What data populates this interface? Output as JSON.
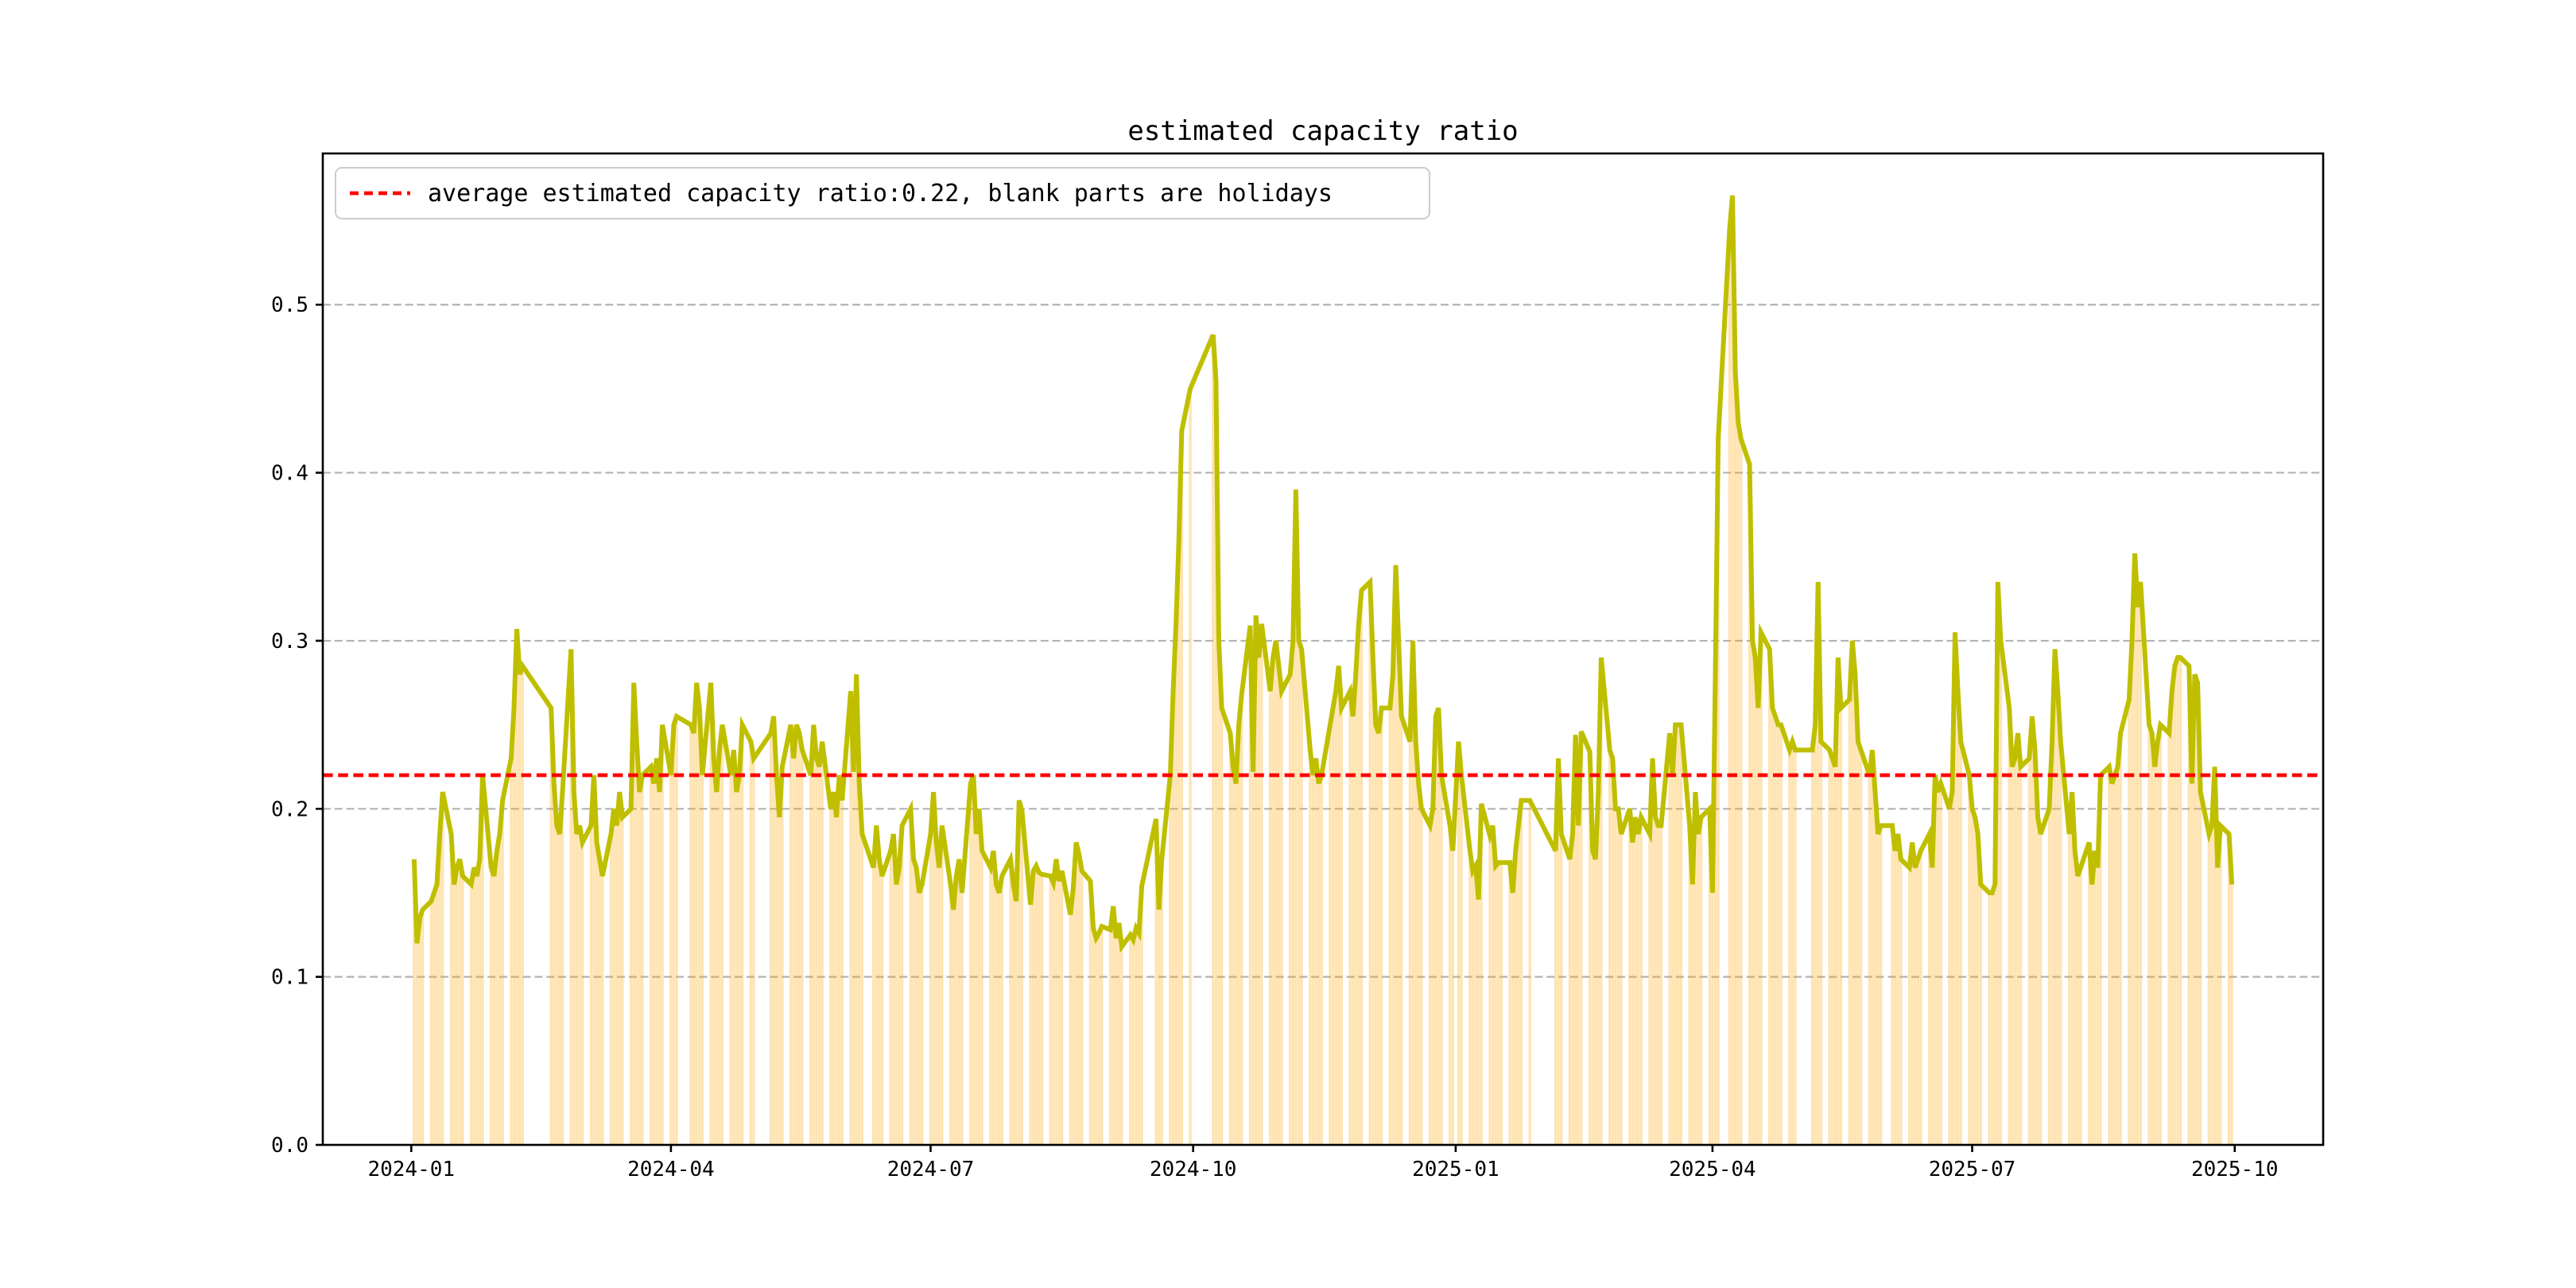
{
  "title": "estimated capacity ratio",
  "legend": {
    "label": "average estimated capacity ratio:0.22, blank parts are holidays",
    "sample_line_color": "#ff0000",
    "sample_line_style": "dashed"
  },
  "chart_data": {
    "type": "bar+line",
    "title": "estimated capacity ratio",
    "xlabel": "",
    "ylabel": "",
    "grid": true,
    "legend_position": "upper left",
    "xlim": [
      "2023-12-01",
      "2025-11-01"
    ],
    "ylim": [
      0,
      0.59
    ],
    "y_ticks": [
      0,
      0.1,
      0.2,
      0.3,
      0.4,
      0.5
    ],
    "y_tick_labels": [
      "0.0",
      "0.1",
      "0.2",
      "0.3",
      "0.4",
      "0.5"
    ],
    "x_tick_labels": [
      "2024-01",
      "2024-04",
      "2024-07",
      "2024-10",
      "2025-01",
      "2025-04",
      "2025-07",
      "2025-10"
    ],
    "average_line": {
      "value": 0.22,
      "color": "#ff0000",
      "style": "dashed"
    },
    "colors": {
      "line": "#bfbf00",
      "bar": "#ffa500",
      "bar_opacity": 0.3,
      "grid": "#b3b3b3",
      "spine": "#000000"
    },
    "series": {
      "name": "estimated capacity ratio",
      "frequency": "business-daily, blanks on holidays",
      "start_date": "2024-01-01",
      "end_date": "2025-09-30",
      "monthly_values": [
        {
          "month": "2024-01",
          "values": [
            0.17,
            0.12,
            0.135,
            0.14,
            0.145,
            0.15,
            0.155,
            0.185,
            0.21,
            0.185,
            0.155,
            0.165,
            0.17,
            0.16,
            0.155,
            0.165,
            0.16,
            0.17,
            0.22,
            0.165,
            0.16,
            0.175
          ]
        },
        {
          "month": "2024-02",
          "values": [
            0.185,
            0.205,
            0.23,
            0.26,
            0.307,
            0.28,
            0.285,
            0.26,
            0.215,
            0.19,
            0.185,
            0.21,
            0.295,
            0.21,
            0.185,
            0.19
          ]
        },
        {
          "month": "2024-03",
          "values": [
            0.18,
            0.19,
            0.22,
            0.18,
            0.17,
            0.16,
            0.185,
            0.2,
            0.19,
            0.21,
            0.195,
            0.2,
            0.275,
            0.24,
            0.21,
            0.22,
            0.225,
            0.215,
            0.23,
            0.21,
            0.25
          ]
        },
        {
          "month": "2024-04",
          "values": [
            0.22,
            0.25,
            0.255,
            0.25,
            0.245,
            0.275,
            0.26,
            0.22,
            0.275,
            0.23,
            0.21,
            0.235,
            0.25,
            0.22,
            0.235,
            0.21,
            0.22,
            0.25,
            0.24,
            0.23
          ]
        },
        {
          "month": "2024-05",
          "values": [
            0.245,
            0.255,
            0.22,
            0.195,
            0.225,
            0.25,
            0.23,
            0.25,
            0.245,
            0.235,
            0.22,
            0.25,
            0.23,
            0.225,
            0.24,
            0.2,
            0.21,
            0.195,
            0.22,
            0.205
          ]
        },
        {
          "month": "2024-06",
          "values": [
            0.27,
            0.222,
            0.28,
            0.215,
            0.185,
            0.165,
            0.19,
            0.17,
            0.16,
            0.175,
            0.185,
            0.155,
            0.165,
            0.19,
            0.2,
            0.17,
            0.165,
            0.15,
            0.155
          ]
        },
        {
          "month": "2024-07",
          "values": [
            0.185,
            0.21,
            0.18,
            0.165,
            0.19,
            0.155,
            0.14,
            0.16,
            0.17,
            0.15,
            0.215,
            0.22,
            0.185,
            0.2,
            0.175,
            0.165,
            0.175,
            0.155,
            0.15,
            0.16,
            0.17,
            0.155,
            0.145
          ]
        },
        {
          "month": "2024-08",
          "values": [
            0.205,
            0.199,
            0.143,
            0.163,
            0.166,
            0.162,
            0.161,
            0.16,
            0.156,
            0.17,
            0.157,
            0.163,
            0.137,
            0.153,
            0.18,
            0.173,
            0.163,
            0.157,
            0.129,
            0.123,
            0.126,
            0.13
          ]
        },
        {
          "month": "2024-09",
          "values": [
            0.128,
            0.142,
            0.123,
            0.132,
            0.118,
            0.125,
            0.122,
            0.129,
            0.126,
            0.154,
            0.194,
            0.14,
            0.17,
            0.22,
            0.27,
            0.31,
            0.36,
            0.425,
            0.45
          ]
        },
        {
          "month": "2024-10",
          "values": [
            0.482,
            0.455,
            0.3,
            0.26,
            0.245,
            0.225,
            0.215,
            0.25,
            0.268,
            0.309,
            0.222,
            0.315,
            0.29,
            0.31,
            0.27,
            0.29,
            0.3,
            0.285
          ]
        },
        {
          "month": "2024-11",
          "values": [
            0.27,
            0.28,
            0.3,
            0.39,
            0.3,
            0.295,
            0.235,
            0.22,
            0.23,
            0.215,
            0.22,
            0.25,
            0.26,
            0.27,
            0.285,
            0.26,
            0.27,
            0.255,
            0.28,
            0.31,
            0.33
          ]
        },
        {
          "month": "2024-12",
          "values": [
            0.335,
            0.29,
            0.25,
            0.245,
            0.26,
            0.26,
            0.28,
            0.345,
            0.3,
            0.255,
            0.24,
            0.3,
            0.24,
            0.215,
            0.2,
            0.19,
            0.2,
            0.255,
            0.26,
            0.22,
            0.19,
            0.175
          ]
        },
        {
          "month": "2025-01",
          "values": [
            0.24,
            0.22,
            0.175,
            0.163,
            0.166,
            0.146,
            0.203,
            0.184,
            0.19,
            0.166,
            0.168,
            0.168,
            0.168,
            0.15,
            0.175,
            0.19,
            0.205,
            0.205
          ]
        },
        {
          "month": "2025-02",
          "values": [
            0.175,
            0.23,
            0.185,
            0.17,
            0.185,
            0.244,
            0.19,
            0.246,
            0.234,
            0.175,
            0.17,
            0.21,
            0.29,
            0.235,
            0.23,
            0.2,
            0.2,
            0.185
          ]
        },
        {
          "month": "2025-03",
          "values": [
            0.2,
            0.18,
            0.195,
            0.185,
            0.195,
            0.185,
            0.23,
            0.195,
            0.19,
            0.19,
            0.245,
            0.22,
            0.25,
            0.25,
            0.25,
            0.19,
            0.155,
            0.21,
            0.185,
            0.195,
            0.2
          ]
        },
        {
          "month": "2025-04",
          "values": [
            0.15,
            0.28,
            0.42,
            0.545,
            0.565,
            0.46,
            0.43,
            0.42,
            0.405,
            0.3,
            0.29,
            0.26,
            0.305,
            0.295,
            0.26,
            0.255,
            0.25,
            0.25,
            0.235,
            0.24,
            0.235
          ]
        },
        {
          "month": "2025-05",
          "values": [
            0.235,
            0.25,
            0.335,
            0.24,
            0.235,
            0.23,
            0.225,
            0.29,
            0.26,
            0.265,
            0.3,
            0.28,
            0.24,
            0.235,
            0.22,
            0.235,
            0.21,
            0.185,
            0.19
          ]
        },
        {
          "month": "2025-06",
          "values": [
            0.19,
            0.175,
            0.185,
            0.17,
            0.165,
            0.18,
            0.165,
            0.17,
            0.175,
            0.185,
            0.165,
            0.22,
            0.21,
            0.215,
            0.2,
            0.21,
            0.305,
            0.27,
            0.24,
            0.22
          ]
        },
        {
          "month": "2025-07",
          "values": [
            0.2,
            0.195,
            0.185,
            0.155,
            0.15,
            0.15,
            0.155,
            0.335,
            0.3,
            0.26,
            0.225,
            0.23,
            0.245,
            0.225,
            0.23,
            0.255,
            0.235,
            0.195,
            0.185,
            0.2,
            0.24,
            0.295,
            0.27
          ]
        },
        {
          "month": "2025-08",
          "values": [
            0.24,
            0.185,
            0.21,
            0.175,
            0.16,
            0.165,
            0.18,
            0.155,
            0.175,
            0.165,
            0.22,
            0.225,
            0.215,
            0.22,
            0.225,
            0.245,
            0.265,
            0.3,
            0.352,
            0.32,
            0.335
          ]
        },
        {
          "month": "2025-09",
          "values": [
            0.25,
            0.245,
            0.225,
            0.24,
            0.25,
            0.245,
            0.27,
            0.285,
            0.29,
            0.29,
            0.285,
            0.215,
            0.28,
            0.275,
            0.21,
            0.185,
            0.19,
            0.225,
            0.165,
            0.19,
            0.185,
            0.155
          ]
        }
      ]
    },
    "holiday_ranges": [
      [
        "2024-01-01",
        "2024-01-01"
      ],
      [
        "2024-02-12",
        "2024-02-16"
      ],
      [
        "2024-04-04",
        "2024-04-05"
      ],
      [
        "2024-05-01",
        "2024-05-03"
      ],
      [
        "2024-06-10",
        "2024-06-10"
      ],
      [
        "2024-09-16",
        "2024-09-17"
      ],
      [
        "2024-10-01",
        "2024-10-07"
      ],
      [
        "2025-01-01",
        "2025-01-01"
      ],
      [
        "2025-01-28",
        "2025-02-04"
      ],
      [
        "2025-04-04",
        "2025-04-04"
      ],
      [
        "2025-05-01",
        "2025-05-05"
      ],
      [
        "2025-06-02",
        "2025-06-02"
      ]
    ]
  }
}
